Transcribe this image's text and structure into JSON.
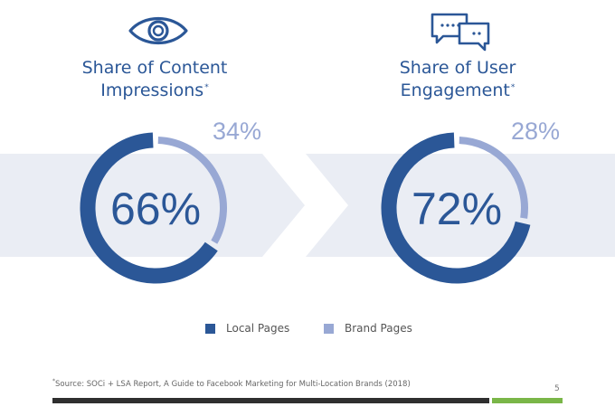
{
  "colors": {
    "local": "#2b5797",
    "brand": "#98a8d4",
    "band": "#eaedf4"
  },
  "icons": [
    "eye-icon",
    "chat-bubbles-icon"
  ],
  "chart_data": [
    {
      "type": "pie",
      "title_line1": "Share of Content",
      "title_line2": "Impressions",
      "title_mark": "*",
      "center_label": "66%",
      "outer_label": "34%",
      "slices": [
        {
          "name": "Local Pages",
          "value": 66
        },
        {
          "name": "Brand Pages",
          "value": 34
        }
      ]
    },
    {
      "type": "pie",
      "title_line1": "Share of User",
      "title_line2": "Engagement",
      "title_mark": "*",
      "center_label": "72%",
      "outer_label": "28%",
      "slices": [
        {
          "name": "Local Pages",
          "value": 72
        },
        {
          "name": "Brand Pages",
          "value": 28
        }
      ]
    }
  ],
  "legend": {
    "local_label": "Local Pages",
    "brand_label": "Brand Pages",
    "placement": "bottom"
  },
  "footnote": {
    "mark": "*",
    "text": "Source: SOCi + LSA Report, A Guide to Facebook Marketing for Multi-Location Brands (2018)"
  },
  "page_number": "5"
}
